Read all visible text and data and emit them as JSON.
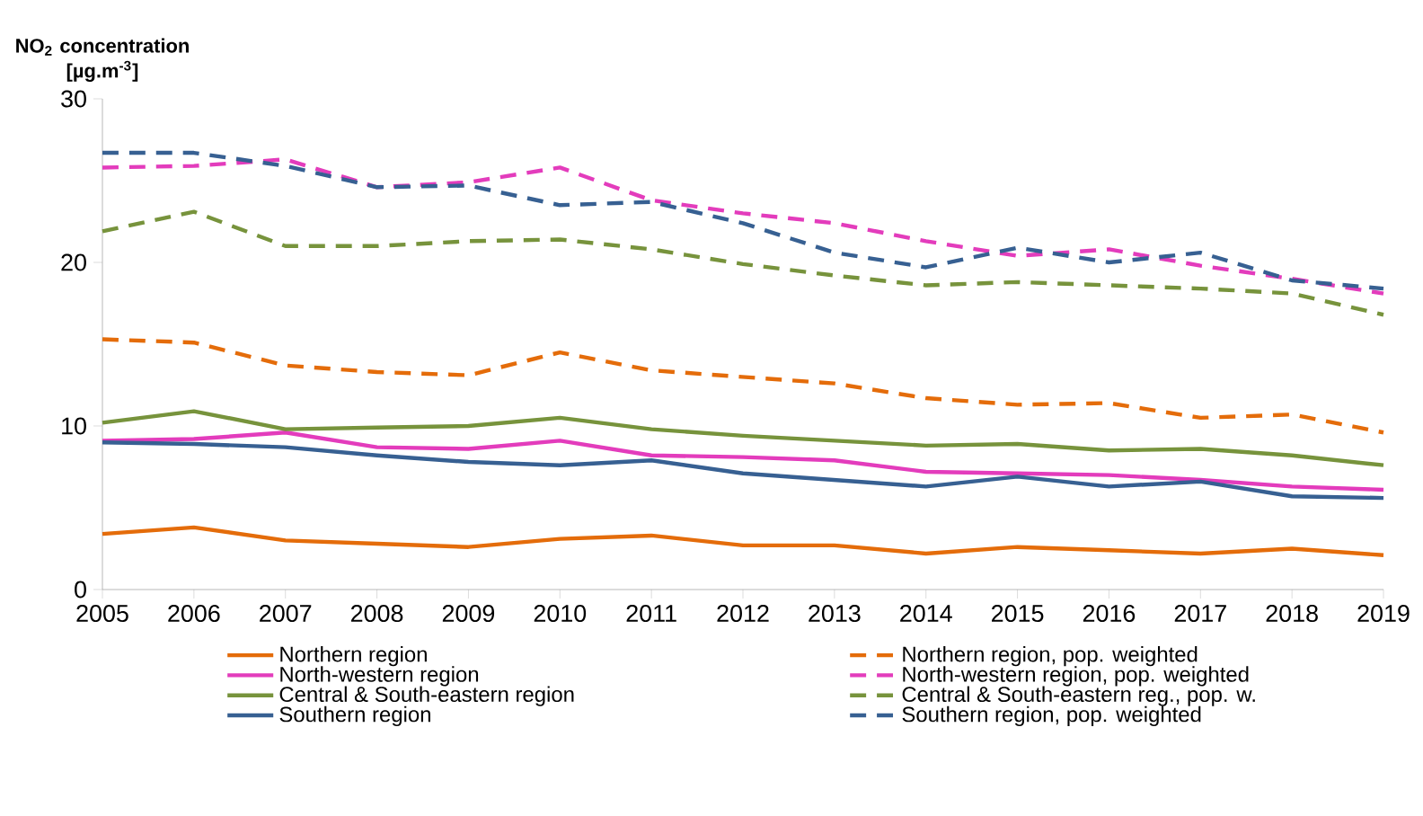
{
  "chart_data": {
    "type": "line",
    "ylabel": "NO$_{2}$ concentration [µg.m$^{-3}$]",
    "x": [
      2005,
      2006,
      2007,
      2008,
      2009,
      2010,
      2011,
      2012,
      2013,
      2014,
      2015,
      2016,
      2017,
      2018,
      2019
    ],
    "xlim": [
      2005,
      2019
    ],
    "xticks": [
      2005,
      2006,
      2007,
      2008,
      2009,
      2010,
      2011,
      2012,
      2013,
      2014,
      2015,
      2016,
      2017,
      2018,
      2019
    ],
    "ylim": [
      0,
      30
    ],
    "yticks": [
      0,
      10,
      20,
      30
    ],
    "grid": false,
    "legend": "bottom",
    "marker": "none",
    "series": [
      {
        "name": "Northern region",
        "color": "#e46c0a",
        "line_style": "solid",
        "values": [
          3.4,
          3.8,
          3.0,
          2.8,
          2.6,
          3.1,
          3.3,
          2.7,
          2.7,
          2.2,
          2.6,
          2.4,
          2.2,
          2.5,
          2.1
        ]
      },
      {
        "name": "Northern region, pop. weighted",
        "color": "#e46c0a",
        "line_style": "dashed",
        "values": [
          15.3,
          15.1,
          13.7,
          13.3,
          13.1,
          14.5,
          13.4,
          13.0,
          12.6,
          11.7,
          11.3,
          11.4,
          10.5,
          10.7,
          9.6
        ]
      },
      {
        "name": "North-western region",
        "color": "#e33cbc",
        "line_style": "solid",
        "values": [
          9.1,
          9.2,
          9.6,
          8.7,
          8.6,
          9.1,
          8.2,
          8.1,
          7.9,
          7.2,
          7.1,
          7.0,
          6.7,
          6.3,
          6.1
        ]
      },
      {
        "name": "North-western region, pop. weighted",
        "color": "#e33cbc",
        "line_style": "dashed",
        "values": [
          25.8,
          25.9,
          26.3,
          24.6,
          24.9,
          25.8,
          23.8,
          23.0,
          22.4,
          21.3,
          20.4,
          20.8,
          19.8,
          19.0,
          18.1
        ]
      },
      {
        "name": "Central & South-eastern region",
        "color": "#77933c",
        "line_style": "solid",
        "values": [
          10.2,
          10.9,
          9.8,
          9.9,
          10.0,
          10.5,
          9.8,
          9.4,
          9.1,
          8.8,
          8.9,
          8.5,
          8.6,
          8.2,
          7.6
        ]
      },
      {
        "name": "Central & South-eastern reg., pop. w.",
        "color": "#77933c",
        "line_style": "dashed",
        "values": [
          21.9,
          23.1,
          21.0,
          21.0,
          21.3,
          21.4,
          20.8,
          19.9,
          19.2,
          18.6,
          18.8,
          18.6,
          18.4,
          18.1,
          16.8
        ]
      },
      {
        "name": "Southern region",
        "color": "#376092",
        "line_style": "solid",
        "values": [
          9.0,
          8.9,
          8.7,
          8.2,
          7.8,
          7.6,
          7.9,
          7.1,
          6.7,
          6.3,
          6.9,
          6.3,
          6.6,
          5.7,
          5.6
        ]
      },
      {
        "name": "Southern region, pop. weighted",
        "color": "#376092",
        "line_style": "dashed",
        "values": [
          26.7,
          26.7,
          25.9,
          24.6,
          24.7,
          23.5,
          23.7,
          22.4,
          20.6,
          19.7,
          20.9,
          20.0,
          20.6,
          18.9,
          18.4
        ]
      }
    ]
  }
}
